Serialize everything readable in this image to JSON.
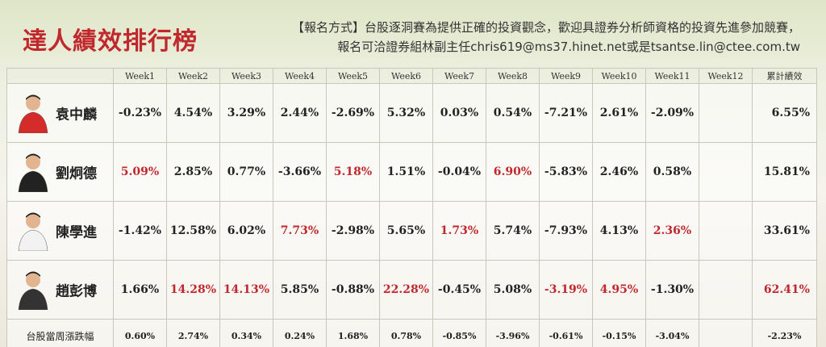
{
  "header": {
    "title": "達人績效排行榜",
    "notice": [
      "【報名方式】台股逐洞賽為提供正確的投資觀念，歡迎具證券分析師資格的投資先進參加競賽，",
      "報名可洽證券組林副主任chris619@ms37.hinet.net或是tsantse.lin@ctee.com.tw"
    ]
  },
  "highlight_color": "#c0282d",
  "table": {
    "columns": [
      "Week1",
      "Week2",
      "Week3",
      "Week4",
      "Week5",
      "Week6",
      "Week7",
      "Week8",
      "Week9",
      "Week10",
      "Week11",
      "Week12",
      "累計績效"
    ],
    "rows": [
      {
        "name": "袁中麟",
        "cells": [
          "-0.23%",
          "4.54%",
          "3.29%",
          "2.44%",
          "-2.69%",
          "5.32%",
          "0.03%",
          "0.54%",
          "-7.21%",
          "2.61%",
          "-2.09%"
        ],
        "total": "6.55%",
        "highlight": [],
        "total_highlight": false
      },
      {
        "name": "劉炯德",
        "cells": [
          "5.09%",
          "2.85%",
          "0.77%",
          "-3.66%",
          "5.18%",
          "1.51%",
          "-0.04%",
          "6.90%",
          "-5.83%",
          "2.46%",
          "0.58%"
        ],
        "total": "15.81%",
        "highlight": [
          0,
          4,
          7
        ],
        "total_highlight": false
      },
      {
        "name": "陳學進",
        "cells": [
          "-1.42%",
          "12.58%",
          "6.02%",
          "7.73%",
          "-2.98%",
          "5.65%",
          "1.73%",
          "5.74%",
          "-7.93%",
          "4.13%",
          "2.36%"
        ],
        "total": "33.61%",
        "highlight": [
          3,
          6,
          10
        ],
        "total_highlight": false
      },
      {
        "name": "趙彭博",
        "cells": [
          "1.66%",
          "14.28%",
          "14.13%",
          "5.85%",
          "-0.88%",
          "22.28%",
          "-0.45%",
          "5.08%",
          "-3.19%",
          "4.95%",
          "-1.30%"
        ],
        "total": "62.41%",
        "highlight": [
          1,
          2,
          5,
          8,
          9
        ],
        "total_highlight": true
      }
    ],
    "footer": {
      "name": "台股當周漲跌幅",
      "cells": [
        "0.60%",
        "2.74%",
        "0.34%",
        "0.24%",
        "1.68%",
        "0.78%",
        "-0.85%",
        "-3.96%",
        "-0.61%",
        "-0.15%",
        "-3.04%"
      ],
      "total": "-2.23%"
    }
  }
}
